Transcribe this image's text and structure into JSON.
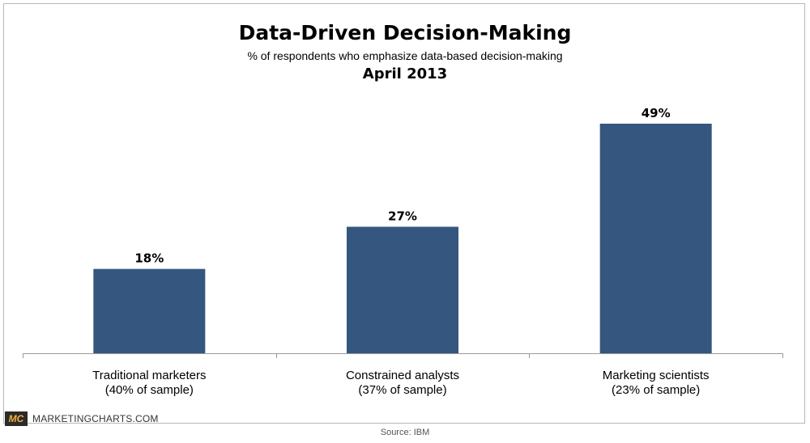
{
  "chart_data": {
    "type": "bar",
    "title": "Data-Driven Decision-Making",
    "subtitle": "% of respondents who emphasize data-based decision-making",
    "date": "April 2013",
    "categories": [
      [
        "Traditional marketers",
        "(40% of sample)"
      ],
      [
        "Constrained analysts",
        "(37% of sample)"
      ],
      [
        "Marketing scientists",
        "(23% of sample)"
      ]
    ],
    "values": [
      18,
      27,
      49
    ],
    "value_labels": [
      "18%",
      "27%",
      "49%"
    ],
    "ylim": [
      0,
      50
    ],
    "grid": false,
    "xlabel": "",
    "ylabel": "",
    "bar_color": "#34567f"
  },
  "brand": {
    "logo": "MC",
    "name": "MARKETINGCHARTS.COM"
  },
  "source": "Source: IBM"
}
